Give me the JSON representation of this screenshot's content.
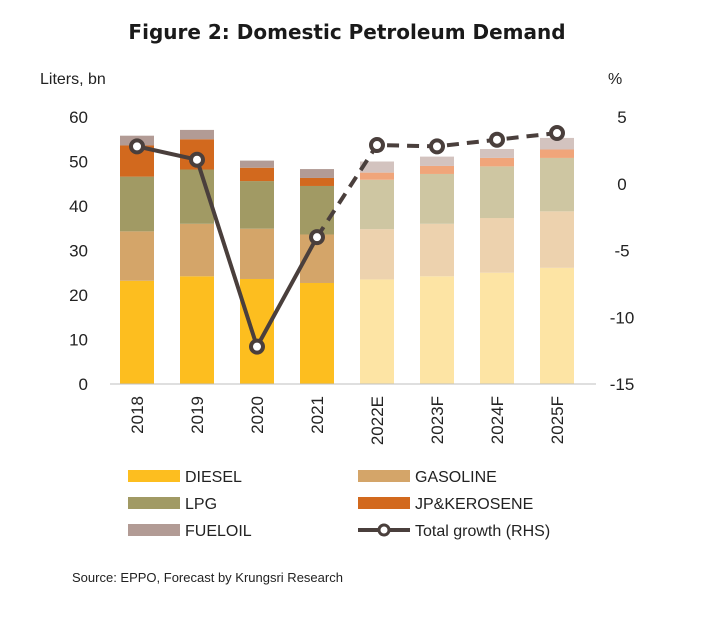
{
  "chart_data": {
    "type": "bar",
    "title": "Figure 2: Domestic Petroleum Demand",
    "y_left_unit": "Liters, bn",
    "y_right_unit": "%",
    "ylim_left": [
      0,
      60
    ],
    "ylim_right": [
      -15,
      5
    ],
    "y_left_ticks": [
      "0",
      "10",
      "20",
      "30",
      "40",
      "50",
      "60"
    ],
    "y_right_ticks": [
      "-15",
      "-10",
      "-5",
      "0",
      "5"
    ],
    "categories": [
      "2018",
      "2019",
      "2020",
      "2021",
      "2022E",
      "2023F",
      "2024F",
      "2025F"
    ],
    "forecast_start_index": 4,
    "stacked": true,
    "series": [
      {
        "name": "DIESEL",
        "color": "#FDBE1F",
        "forecast_color": "#FDE4A4",
        "values": [
          23.2,
          24.2,
          23.6,
          22.7,
          23.5,
          24.2,
          25.0,
          26.1
        ]
      },
      {
        "name": "GASOLINE",
        "color": "#D4A569",
        "forecast_color": "#EDD2AE",
        "values": [
          11.1,
          11.8,
          11.3,
          10.9,
          11.3,
          11.8,
          12.3,
          12.7
        ]
      },
      {
        "name": "LPG",
        "color": "#A19A64",
        "forecast_color": "#CEC6A2",
        "values": [
          12.3,
          12.2,
          10.7,
          10.9,
          11.1,
          11.2,
          11.6,
          12.0
        ]
      },
      {
        "name": "JP&KEROSENE",
        "color": "#D2691E",
        "forecast_color": "#F0A57A",
        "values": [
          7.0,
          6.8,
          3.0,
          1.8,
          1.6,
          1.8,
          1.9,
          1.9
        ]
      },
      {
        "name": "FUELOIL",
        "color": "#B29B95",
        "forecast_color": "#D3C3BF",
        "values": [
          2.2,
          2.1,
          1.6,
          2.0,
          2.5,
          2.1,
          2.0,
          2.6
        ]
      }
    ],
    "line_series": {
      "name": "Total growth (RHS)",
      "axis": "right",
      "color": "#4A3F3C",
      "values": [
        2.8,
        1.8,
        -12.2,
        -4.0,
        2.9,
        2.8,
        3.3,
        3.8
      ]
    },
    "legend_position": "bottom"
  },
  "source": "Source: EPPO, Forecast by Krungsri Research"
}
